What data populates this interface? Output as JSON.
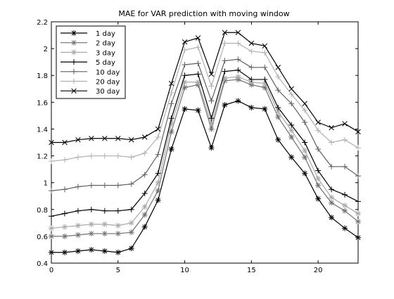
{
  "chart_data": {
    "type": "line",
    "title": "MAE for VAR prediction with moving window",
    "xlabel": "",
    "ylabel": "",
    "xlim": [
      0,
      23
    ],
    "ylim": [
      0.4,
      2.2
    ],
    "xticks": [
      0,
      5,
      10,
      15,
      20
    ],
    "yticks": [
      0.4,
      0.6,
      0.8,
      1,
      1.2,
      1.4,
      1.6,
      1.8,
      2,
      2.2
    ],
    "xtick_labels": [
      "0",
      "5",
      "10",
      "15",
      "20"
    ],
    "ytick_labels": [
      "0.4",
      "0.6",
      "0.8",
      "1",
      "1.2",
      "1.4",
      "1.6",
      "1.8",
      "2",
      "2.2"
    ],
    "grid": false,
    "legend_position": "top-left",
    "x": [
      0,
      1,
      2,
      3,
      4,
      5,
      6,
      7,
      8,
      9,
      10,
      11,
      12,
      13,
      14,
      15,
      16,
      17,
      18,
      19,
      20,
      21,
      22,
      23
    ],
    "series": [
      {
        "name": "1 day",
        "color": "#000000",
        "marker": "asterisk",
        "values": [
          0.48,
          0.48,
          0.49,
          0.5,
          0.49,
          0.48,
          0.51,
          0.67,
          0.87,
          1.25,
          1.55,
          1.54,
          1.26,
          1.58,
          1.61,
          1.56,
          1.55,
          1.32,
          1.19,
          1.07,
          0.88,
          0.74,
          0.66,
          0.59
        ]
      },
      {
        "name": "2 day",
        "color": "#707070",
        "marker": "asterisk",
        "values": [
          0.6,
          0.6,
          0.61,
          0.62,
          0.62,
          0.62,
          0.63,
          0.76,
          0.94,
          1.38,
          1.71,
          1.73,
          1.4,
          1.76,
          1.77,
          1.73,
          1.71,
          1.49,
          1.34,
          1.19,
          0.98,
          0.85,
          0.79,
          0.71
        ]
      },
      {
        "name": "3 day",
        "color": "#a8a8a8",
        "marker": "asterisk",
        "values": [
          0.66,
          0.67,
          0.68,
          0.69,
          0.69,
          0.68,
          0.7,
          0.82,
          1.0,
          1.44,
          1.75,
          1.75,
          1.44,
          1.78,
          1.79,
          1.75,
          1.74,
          1.53,
          1.39,
          1.24,
          1.03,
          0.89,
          0.83,
          0.77
        ]
      },
      {
        "name": "5 day",
        "color": "#000000",
        "marker": "plus",
        "values": [
          0.75,
          0.77,
          0.79,
          0.8,
          0.79,
          0.79,
          0.8,
          0.92,
          1.07,
          1.48,
          1.8,
          1.81,
          1.48,
          1.83,
          1.84,
          1.77,
          1.77,
          1.56,
          1.43,
          1.3,
          1.09,
          0.95,
          0.91,
          0.86
        ]
      },
      {
        "name": "10 day",
        "color": "#606060",
        "marker": "plus",
        "values": [
          0.94,
          0.95,
          0.97,
          0.98,
          0.98,
          0.98,
          0.99,
          1.06,
          1.21,
          1.59,
          1.88,
          1.89,
          1.61,
          1.91,
          1.92,
          1.86,
          1.86,
          1.69,
          1.59,
          1.45,
          1.25,
          1.12,
          1.12,
          1.05
        ]
      },
      {
        "name": "20 day",
        "color": "#b0b0b0",
        "marker": "plus",
        "values": [
          1.16,
          1.17,
          1.19,
          1.2,
          1.2,
          1.2,
          1.19,
          1.22,
          1.34,
          1.67,
          1.99,
          2.01,
          1.72,
          2.04,
          2.04,
          1.98,
          1.97,
          1.79,
          1.66,
          1.54,
          1.39,
          1.3,
          1.32,
          1.26
        ]
      },
      {
        "name": "30 day",
        "color": "#000000",
        "marker": "x",
        "values": [
          1.3,
          1.3,
          1.32,
          1.33,
          1.33,
          1.33,
          1.32,
          1.34,
          1.4,
          1.74,
          2.05,
          2.08,
          1.81,
          2.12,
          2.12,
          2.04,
          2.02,
          1.86,
          1.7,
          1.59,
          1.45,
          1.41,
          1.44,
          1.38
        ]
      }
    ]
  }
}
